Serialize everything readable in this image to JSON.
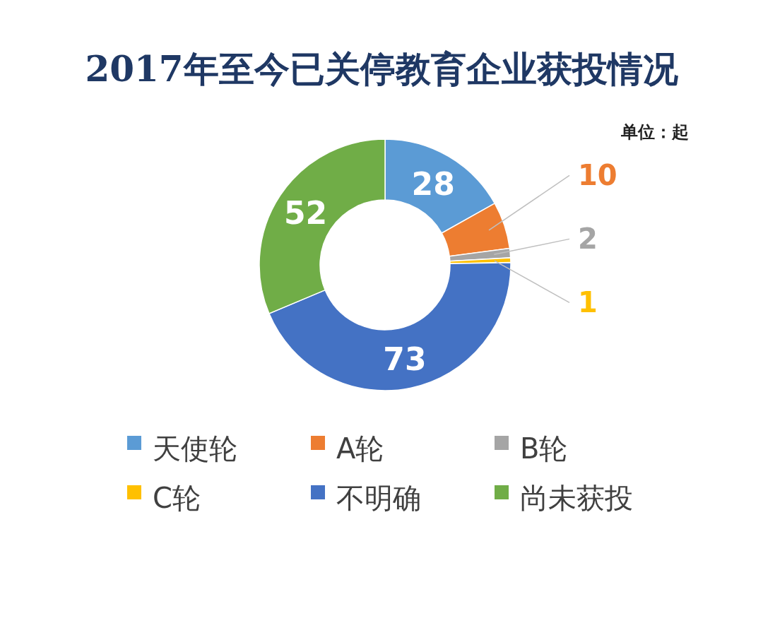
{
  "chart_data": {
    "type": "donut",
    "title": "2017年至今已关停教育企业获投情况",
    "annotations": [
      "单位：起"
    ],
    "categories": [
      "天使轮",
      "A轮",
      "B轮",
      "C轮",
      "不明确",
      "尚未获投"
    ],
    "values": [
      28,
      10,
      2,
      1,
      73,
      52
    ],
    "colors": [
      "#5b9bd5",
      "#ed7d31",
      "#a5a5a5",
      "#ffc000",
      "#4472c4",
      "#70ad47"
    ],
    "data_labels": true,
    "legend": "bottom"
  }
}
